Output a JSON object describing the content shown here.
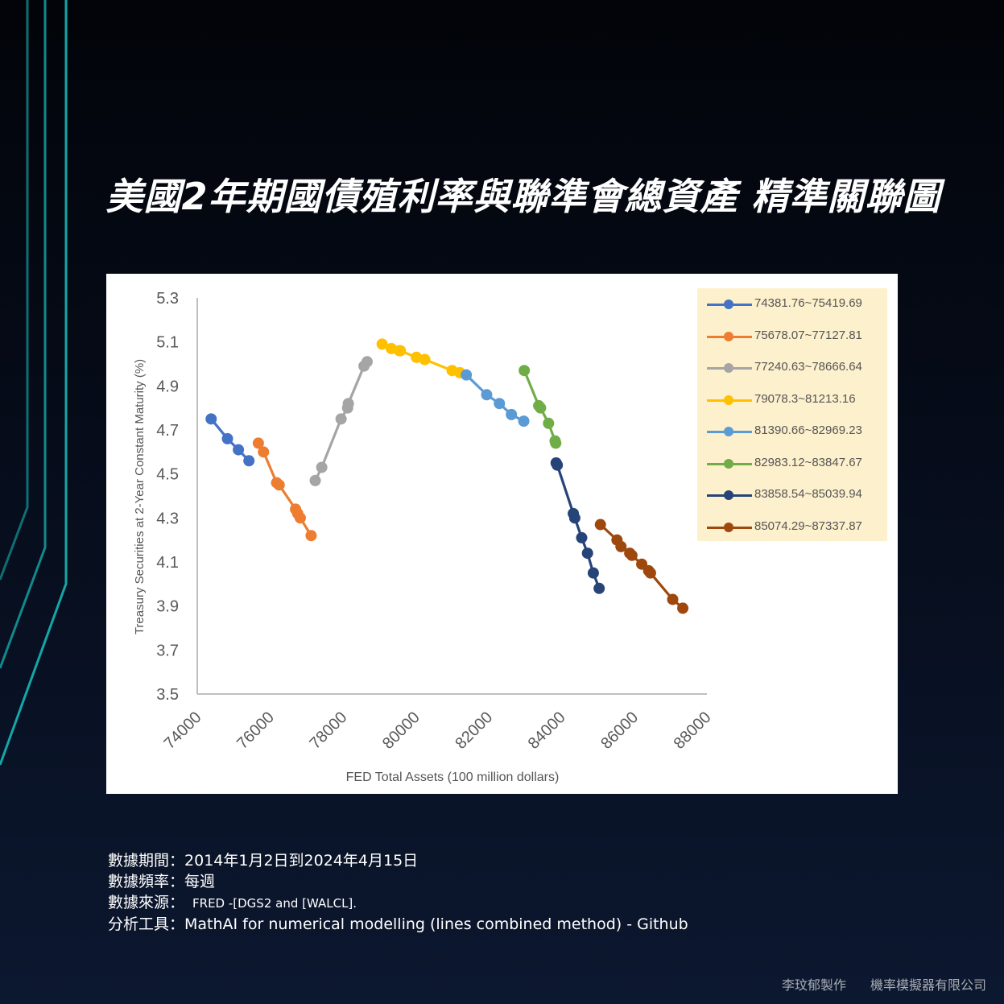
{
  "title": "美國2年期國債殖利率與聯準會總資產 精準關聯圖",
  "colors": {
    "background": "#060c1a",
    "accent_line": "#14a7a7"
  },
  "notes": {
    "period_label": "數據期間：",
    "period_value": "2014年1月2日到2024年4月15日",
    "frequency_label": "數據頻率：",
    "frequency_value": "每週",
    "source_label": "數據來源：",
    "source_value": "FRED -[DGS2 and [WALCL].",
    "tool_label": "分析工具：",
    "tool_value": "MathAI  for numerical modelling (lines combined method) - Github"
  },
  "footer": {
    "author": "李玟郁製作",
    "company": "機率模擬器有限公司"
  },
  "chart_data": {
    "type": "scatter",
    "title": "",
    "xlabel": "FED Total Assets (100 million dollars)",
    "ylabel": "Treasury Securities at 2-Year Constant Maturity (%)",
    "xlim": [
      74000,
      88000
    ],
    "ylim": [
      3.5,
      5.3
    ],
    "xticks": [
      74000,
      76000,
      78000,
      80000,
      82000,
      84000,
      86000,
      88000
    ],
    "yticks": [
      3.5,
      3.7,
      3.9,
      4.1,
      4.3,
      4.5,
      4.7,
      4.9,
      5.1,
      5.3
    ],
    "legend_position": "top-right",
    "series": [
      {
        "name": "74381.76~75419.69",
        "color": "#4472c4",
        "points": [
          [
            74381.76,
            4.75
          ],
          [
            74830,
            4.66
          ],
          [
            75130,
            4.61
          ],
          [
            75419.69,
            4.56
          ]
        ]
      },
      {
        "name": "75678.07~77127.81",
        "color": "#ed7d31",
        "points": [
          [
            75678.07,
            4.64
          ],
          [
            75820,
            4.6
          ],
          [
            76180,
            4.46
          ],
          [
            76250,
            4.45
          ],
          [
            76700,
            4.34
          ],
          [
            76760,
            4.32
          ],
          [
            76830,
            4.3
          ],
          [
            77127.81,
            4.22
          ]
        ]
      },
      {
        "name": "77240.63~78666.64",
        "color": "#a5a5a5",
        "points": [
          [
            77240.63,
            4.47
          ],
          [
            77420,
            4.53
          ],
          [
            77950,
            4.75
          ],
          [
            78130,
            4.8
          ],
          [
            78150,
            4.82
          ],
          [
            78580,
            4.99
          ],
          [
            78666.64,
            5.01
          ]
        ]
      },
      {
        "name": "79078.3~81213.16",
        "color": "#ffc000",
        "points": [
          [
            79078.3,
            5.09
          ],
          [
            79330,
            5.07
          ],
          [
            79550,
            5.06
          ],
          [
            79580,
            5.06
          ],
          [
            80020,
            5.03
          ],
          [
            80250,
            5.02
          ],
          [
            81000,
            4.97
          ],
          [
            81213.16,
            4.96
          ]
        ]
      },
      {
        "name": "81390.66~82969.23",
        "color": "#5b9bd5",
        "points": [
          [
            81390.66,
            4.95
          ],
          [
            81950,
            4.86
          ],
          [
            82300,
            4.82
          ],
          [
            82630,
            4.77
          ],
          [
            82969.23,
            4.74
          ]
        ]
      },
      {
        "name": "82983.12~83847.67",
        "color": "#70ad47",
        "points": [
          [
            82983.12,
            4.97
          ],
          [
            83380,
            4.81
          ],
          [
            83430,
            4.8
          ],
          [
            83650,
            4.73
          ],
          [
            83830,
            4.65
          ],
          [
            83847.67,
            4.64
          ]
        ]
      },
      {
        "name": "83858.54~85039.94",
        "color": "#264478",
        "points": [
          [
            83858.54,
            4.55
          ],
          [
            83890,
            4.54
          ],
          [
            84330,
            4.32
          ],
          [
            84370,
            4.3
          ],
          [
            84560,
            4.21
          ],
          [
            84720,
            4.14
          ],
          [
            84880,
            4.05
          ],
          [
            85039.94,
            3.98
          ]
        ]
      },
      {
        "name": "85074.29~87337.87",
        "color": "#9e480e",
        "points": [
          [
            85074.29,
            4.27
          ],
          [
            85530,
            4.2
          ],
          [
            85640,
            4.17
          ],
          [
            85880,
            4.14
          ],
          [
            85940,
            4.13
          ],
          [
            86210,
            4.09
          ],
          [
            86400,
            4.06
          ],
          [
            86450,
            4.05
          ],
          [
            87060,
            3.93
          ],
          [
            87337.87,
            3.89
          ]
        ]
      }
    ]
  }
}
